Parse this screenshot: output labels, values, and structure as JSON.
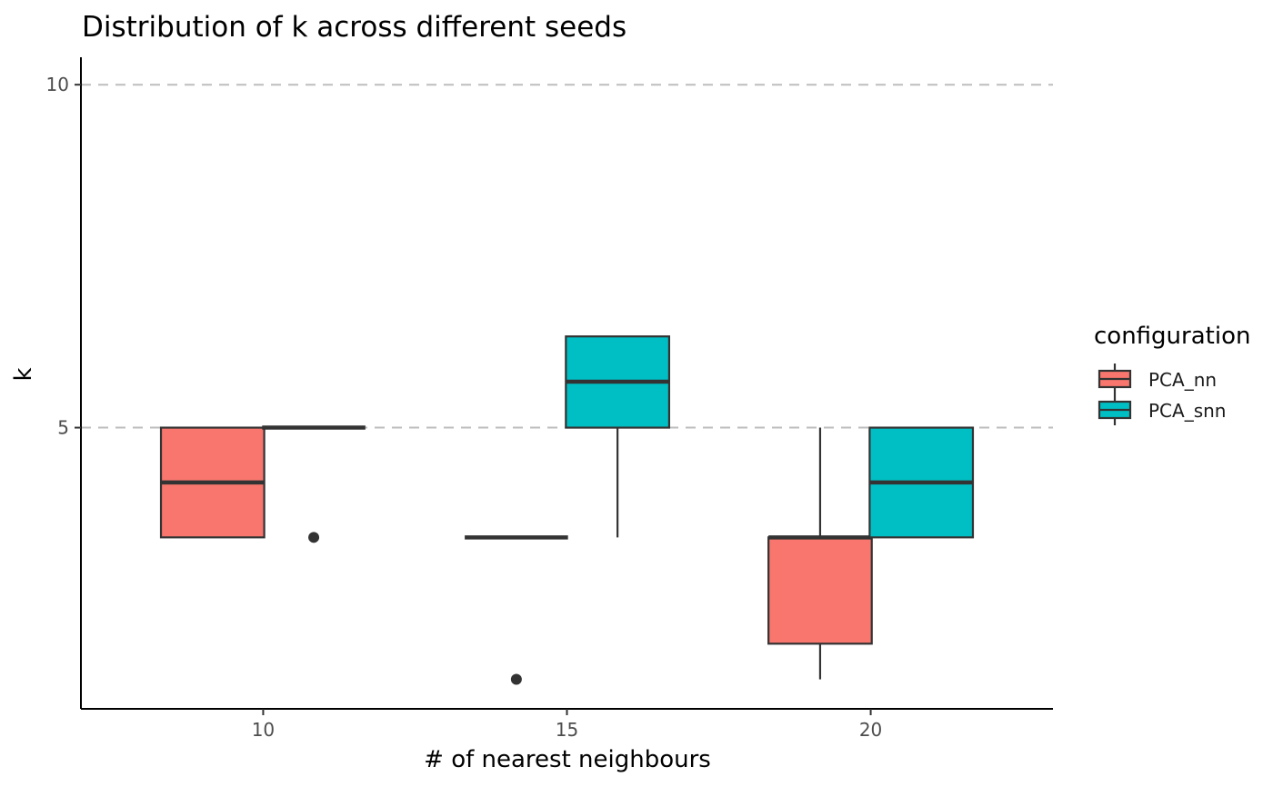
{
  "chart_data": {
    "type": "box",
    "title": "Distribution of k across different seeds",
    "xlabel": "# of nearest neighbours",
    "ylabel": "k",
    "categories": [
      "10",
      "15",
      "20"
    ],
    "x_ticks": [
      "10",
      "15",
      "20"
    ],
    "y_ticks": [
      "5",
      "10"
    ],
    "xlim": [
      7,
      23
    ],
    "ylim": [
      0.9,
      10.4
    ],
    "grid": "dashed horizontal major lines at 5 and 10",
    "legend": {
      "title": "configuration",
      "position": "right",
      "entries": [
        "PCA_nn",
        "PCA_snn"
      ]
    },
    "series": [
      {
        "name": "PCA_nn",
        "color": "#F8766D",
        "boxes": [
          {
            "category": "10",
            "min": 3.4,
            "q1": 3.4,
            "median": 4.2,
            "q3": 5.0,
            "max": 5.0,
            "outliers": []
          },
          {
            "category": "15",
            "min": 3.4,
            "q1": 3.4,
            "median": 3.4,
            "q3": 3.4,
            "max": 3.4,
            "outliers": [
              1.33
            ]
          },
          {
            "category": "20",
            "min": 1.33,
            "q1": 1.85,
            "median": 3.4,
            "q3": 3.4,
            "max": 5.0,
            "outliers": []
          }
        ]
      },
      {
        "name": "PCA_snn",
        "color": "#00BFC4",
        "boxes": [
          {
            "category": "10",
            "min": 5.0,
            "q1": 5.0,
            "median": 5.0,
            "q3": 5.0,
            "max": 5.0,
            "outliers": [
              3.4
            ]
          },
          {
            "category": "15",
            "min": 3.4,
            "q1": 5.0,
            "median": 5.67,
            "q3": 6.33,
            "max": 6.33,
            "outliers": []
          },
          {
            "category": "20",
            "min": 3.4,
            "q1": 3.4,
            "median": 4.2,
            "q3": 5.0,
            "max": 5.0,
            "outliers": []
          }
        ]
      }
    ]
  }
}
